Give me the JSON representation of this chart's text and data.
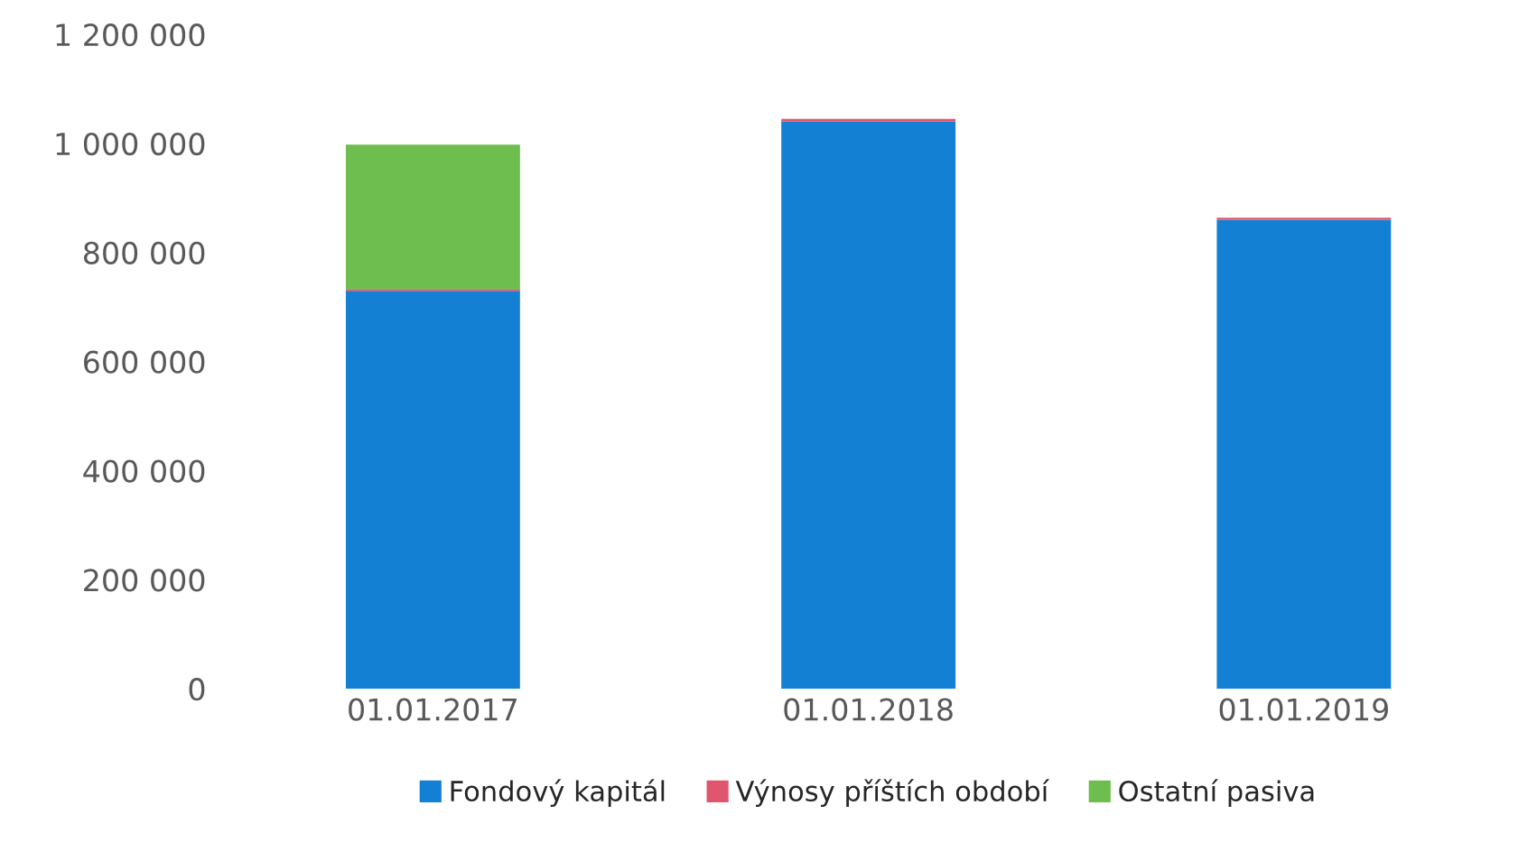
{
  "chart_data": {
    "type": "bar",
    "stacked": true,
    "categories": [
      "01.01.2017",
      "01.01.2018",
      "01.01.2019"
    ],
    "series": [
      {
        "name": "Fondový kapitál",
        "color": "#1380d4",
        "values": [
          730000,
          1040000,
          860000
        ]
      },
      {
        "name": "Výnosy příštích období",
        "color": "#e0566e",
        "values": [
          3000,
          5000,
          4000
        ]
      },
      {
        "name": "Ostatní pasiva",
        "color": "#6ebe4f",
        "values": [
          265000,
          0,
          0
        ]
      }
    ],
    "ylim": [
      0,
      1200000
    ],
    "yticks": [
      {
        "value": 0,
        "label": "0"
      },
      {
        "value": 200000,
        "label": "200 000"
      },
      {
        "value": 400000,
        "label": "400 000"
      },
      {
        "value": 600000,
        "label": "600 000"
      },
      {
        "value": 800000,
        "label": "800 000"
      },
      {
        "value": 1000000,
        "label": "1 000 000"
      },
      {
        "value": 1200000,
        "label": "1 200 000"
      }
    ],
    "grid": false,
    "legend": "bottom"
  }
}
